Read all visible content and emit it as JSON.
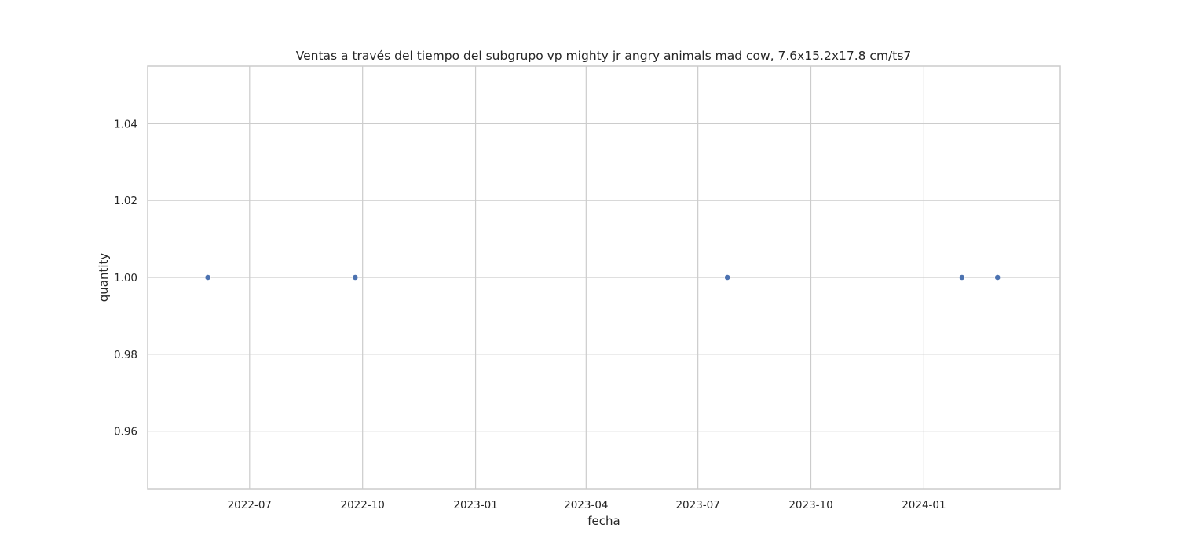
{
  "chart_data": {
    "type": "scatter",
    "title": "Ventas a través del tiempo del subgrupo vp mighty jr angry animals mad cow, 7.6x15.2x17.8 cm/ts7",
    "xlabel": "fecha",
    "ylabel": "quantity",
    "x_type": "date",
    "xlim": [
      "2022-04-09",
      "2024-04-21"
    ],
    "ylim": [
      0.945,
      1.055
    ],
    "x_ticks": [
      "2022-07-01",
      "2022-10-01",
      "2023-01-01",
      "2023-04-01",
      "2023-07-01",
      "2023-10-01",
      "2024-01-01"
    ],
    "x_tick_labels": [
      "2022-07",
      "2022-10",
      "2023-01",
      "2023-04",
      "2023-07",
      "2023-10",
      "2024-01"
    ],
    "y_ticks": [
      0.96,
      0.98,
      1.0,
      1.02,
      1.04
    ],
    "y_tick_labels": [
      "0.96",
      "0.98",
      "1.00",
      "1.02",
      "1.04"
    ],
    "grid": true,
    "marker_color": "#4c72b0",
    "points": [
      {
        "x": "2022-05-28",
        "y": 1
      },
      {
        "x": "2022-09-25",
        "y": 1
      },
      {
        "x": "2023-07-25",
        "y": 1
      },
      {
        "x": "2024-02-01",
        "y": 1
      },
      {
        "x": "2024-03-01",
        "y": 1
      }
    ]
  }
}
